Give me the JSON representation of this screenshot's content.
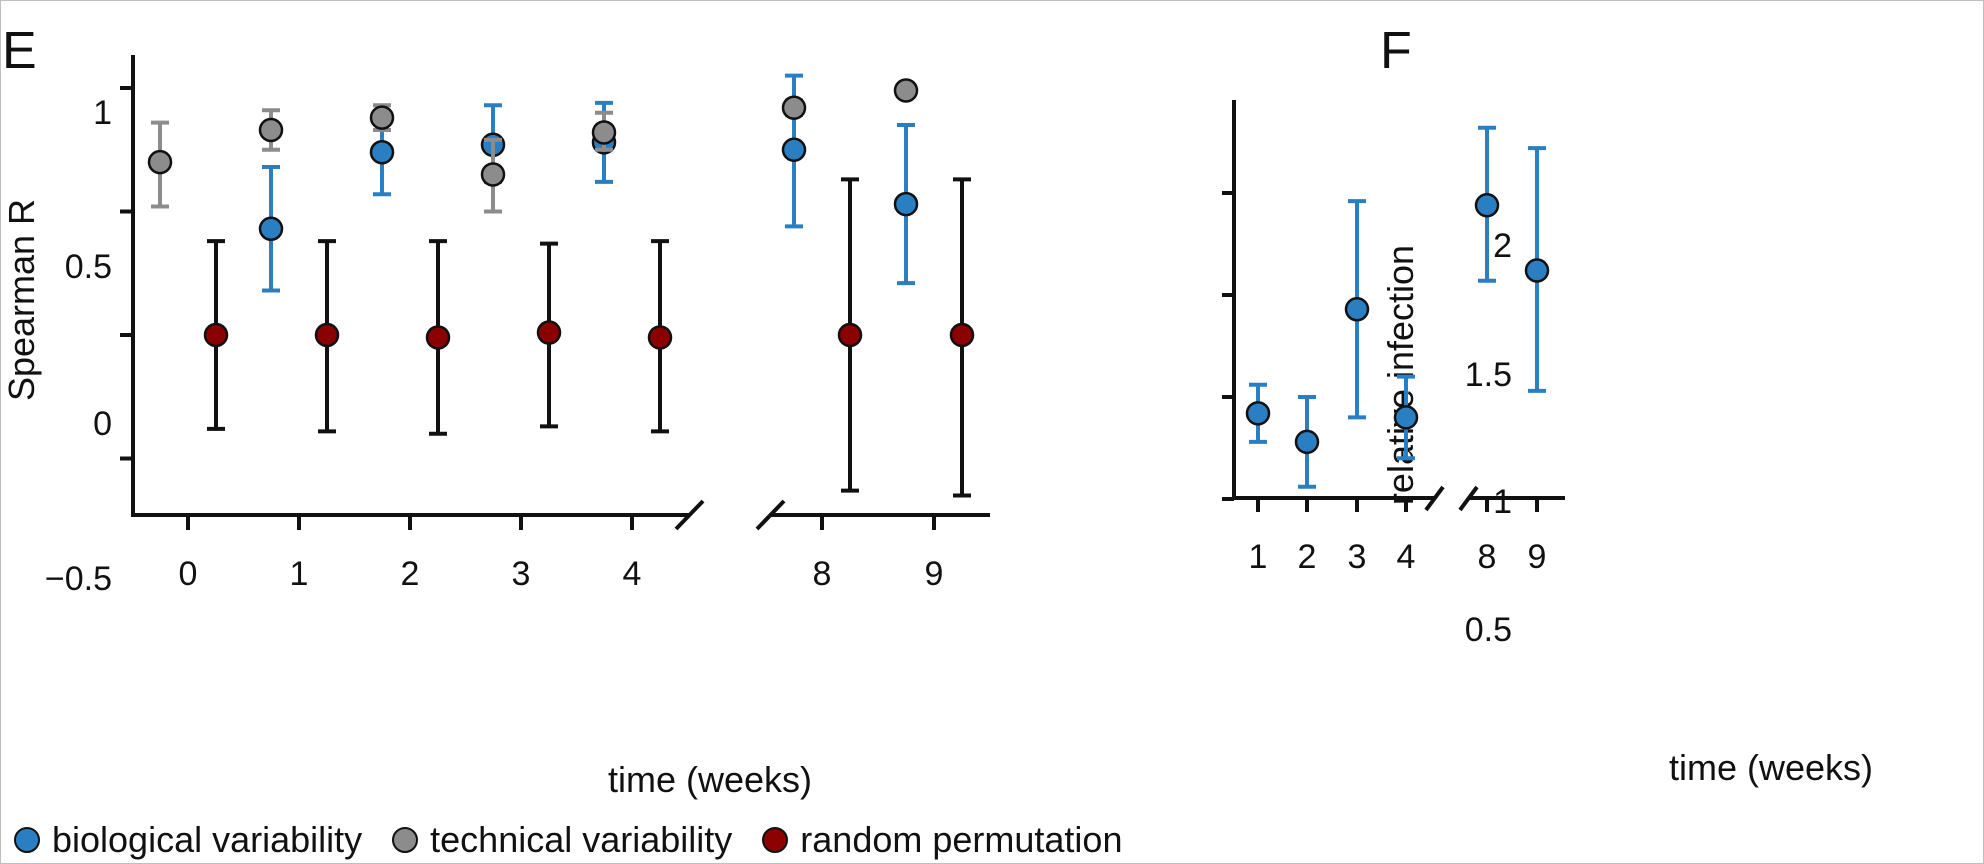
{
  "colors": {
    "biological": "#2a7fc2",
    "technical": "#8c8c8c",
    "random": "#8b0000",
    "axis": "#111111"
  },
  "legend": [
    {
      "label": "biological variability",
      "color": "#2a7fc2"
    },
    {
      "label": "technical variability",
      "color": "#8c8c8c"
    },
    {
      "label": "random permutation",
      "color": "#8b0000"
    }
  ],
  "chart_data": [
    {
      "panel_label": "E",
      "type": "scatter",
      "xlabel": "time (weeks)",
      "ylabel": "Spearman R",
      "x_categories": [
        "0",
        "1",
        "2",
        "3",
        "4",
        "8",
        "9"
      ],
      "yticks": [
        "1",
        "0.5",
        "0",
        "−0.5"
      ],
      "ylim": [
        -0.72,
        1.15
      ],
      "axis_break": "between 4 and 8",
      "series": [
        {
          "name": "biological variability",
          "x": [
            "1",
            "2",
            "3",
            "4",
            "8",
            "9"
          ],
          "values": [
            0.43,
            0.74,
            0.77,
            0.78,
            0.75,
            0.53
          ],
          "error_low": [
            0.18,
            0.57,
            0.62,
            0.62,
            0.44,
            0.21
          ],
          "error_high": [
            0.68,
            0.9,
            0.93,
            0.94,
            1.05,
            0.85
          ]
        },
        {
          "name": "technical variability",
          "x": [
            "0",
            "1",
            "2",
            "3",
            "4",
            "8",
            "9"
          ],
          "values": [
            0.7,
            0.83,
            0.88,
            0.65,
            0.82,
            0.92,
            0.99
          ],
          "error_low": [
            0.52,
            0.75,
            0.83,
            0.5,
            0.75,
            0.89,
            0.99
          ],
          "error_high": [
            0.86,
            0.91,
            0.93,
            0.79,
            0.9,
            0.95,
            0.99
          ]
        },
        {
          "name": "random permutation",
          "x": [
            "0",
            "1",
            "2",
            "3",
            "4",
            "8",
            "9"
          ],
          "values": [
            0.0,
            0.0,
            -0.01,
            0.01,
            -0.01,
            0.0,
            0.0
          ],
          "error_low": [
            -0.38,
            -0.39,
            -0.4,
            -0.37,
            -0.39,
            -0.63,
            -0.65
          ],
          "error_high": [
            0.38,
            0.38,
            0.38,
            0.37,
            0.38,
            0.63,
            0.63
          ]
        }
      ]
    },
    {
      "panel_label": "F",
      "type": "scatter",
      "xlabel": "time (weeks)",
      "ylabel": "relative infection",
      "x_categories": [
        "1",
        "2",
        "3",
        "4",
        "8",
        "9"
      ],
      "yticks": [
        "2",
        "1.5",
        "1",
        "0.5"
      ],
      "ylim": [
        0.5,
        2.45
      ],
      "axis_break": "between 4 and 8",
      "series": [
        {
          "name": "biological variability",
          "x": [
            "1",
            "2",
            "3",
            "4",
            "8",
            "9"
          ],
          "values": [
            0.92,
            0.78,
            1.43,
            0.9,
            1.94,
            1.62
          ],
          "error_low": [
            0.78,
            0.56,
            0.9,
            0.7,
            1.57,
            1.03
          ],
          "error_high": [
            1.06,
            1.0,
            1.96,
            1.1,
            2.32,
            2.22
          ]
        }
      ]
    }
  ]
}
